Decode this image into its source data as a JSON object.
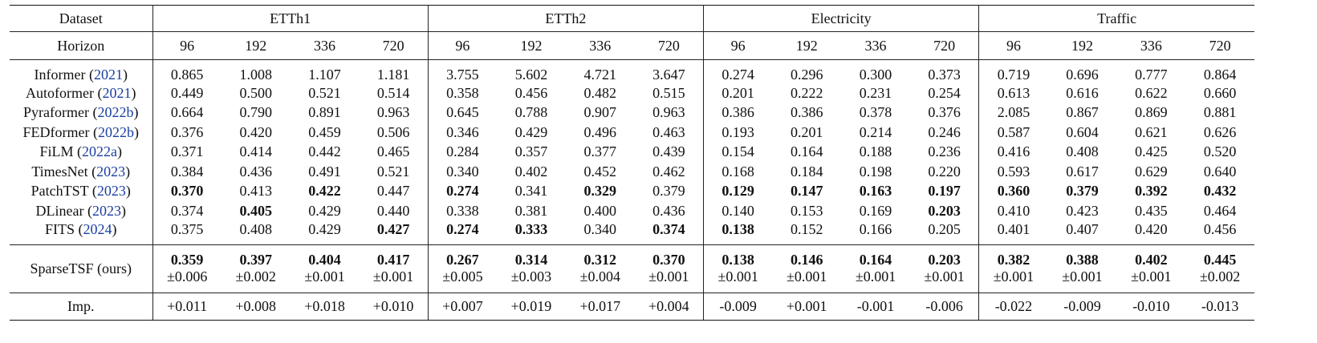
{
  "header": {
    "dataset_label": "Dataset",
    "horizon_label": "Horizon",
    "datasets": [
      "ETTh1",
      "ETTh2",
      "Electricity",
      "Traffic"
    ],
    "horizons": [
      "96",
      "192",
      "336",
      "720"
    ]
  },
  "rows": [
    {
      "model": "Informer",
      "cite": "(2021)",
      "values": [
        "0.865",
        "1.008",
        "1.107",
        "1.181",
        "3.755",
        "5.602",
        "4.721",
        "3.647",
        "0.274",
        "0.296",
        "0.300",
        "0.373",
        "0.719",
        "0.696",
        "0.777",
        "0.864"
      ],
      "bold": []
    },
    {
      "model": "Autoformer",
      "cite": "(2021)",
      "values": [
        "0.449",
        "0.500",
        "0.521",
        "0.514",
        "0.358",
        "0.456",
        "0.482",
        "0.515",
        "0.201",
        "0.222",
        "0.231",
        "0.254",
        "0.613",
        "0.616",
        "0.622",
        "0.660"
      ],
      "bold": []
    },
    {
      "model": "Pyraformer",
      "cite": "(2022b)",
      "values": [
        "0.664",
        "0.790",
        "0.891",
        "0.963",
        "0.645",
        "0.788",
        "0.907",
        "0.963",
        "0.386",
        "0.386",
        "0.378",
        "0.376",
        "2.085",
        "0.867",
        "0.869",
        "0.881"
      ],
      "bold": []
    },
    {
      "model": "FEDformer",
      "cite": "(2022b)",
      "values": [
        "0.376",
        "0.420",
        "0.459",
        "0.506",
        "0.346",
        "0.429",
        "0.496",
        "0.463",
        "0.193",
        "0.201",
        "0.214",
        "0.246",
        "0.587",
        "0.604",
        "0.621",
        "0.626"
      ],
      "bold": []
    },
    {
      "model": "FiLM",
      "cite": "(2022a)",
      "values": [
        "0.371",
        "0.414",
        "0.442",
        "0.465",
        "0.284",
        "0.357",
        "0.377",
        "0.439",
        "0.154",
        "0.164",
        "0.188",
        "0.236",
        "0.416",
        "0.408",
        "0.425",
        "0.520"
      ],
      "bold": []
    },
    {
      "model": "TimesNet",
      "cite": "(2023)",
      "values": [
        "0.384",
        "0.436",
        "0.491",
        "0.521",
        "0.340",
        "0.402",
        "0.452",
        "0.462",
        "0.168",
        "0.184",
        "0.198",
        "0.220",
        "0.593",
        "0.617",
        "0.629",
        "0.640"
      ],
      "bold": []
    },
    {
      "model": "PatchTST",
      "cite": "(2023)",
      "values": [
        "0.370",
        "0.413",
        "0.422",
        "0.447",
        "0.274",
        "0.341",
        "0.329",
        "0.379",
        "0.129",
        "0.147",
        "0.163",
        "0.197",
        "0.360",
        "0.379",
        "0.392",
        "0.432"
      ],
      "bold": [
        0,
        2,
        4,
        6,
        8,
        9,
        10,
        11,
        12,
        13,
        14,
        15
      ]
    },
    {
      "model": "DLinear",
      "cite": "(2023)",
      "values": [
        "0.374",
        "0.405",
        "0.429",
        "0.440",
        "0.338",
        "0.381",
        "0.400",
        "0.436",
        "0.140",
        "0.153",
        "0.169",
        "0.203",
        "0.410",
        "0.423",
        "0.435",
        "0.464"
      ],
      "bold": [
        1,
        11
      ]
    },
    {
      "model": "FITS",
      "cite": "(2024)",
      "values": [
        "0.375",
        "0.408",
        "0.429",
        "0.427",
        "0.274",
        "0.333",
        "0.340",
        "0.374",
        "0.138",
        "0.152",
        "0.166",
        "0.205",
        "0.401",
        "0.407",
        "0.420",
        "0.456"
      ],
      "bold": [
        3,
        4,
        5,
        7,
        8
      ]
    }
  ],
  "ours": {
    "model": "SparseTSF (ours)",
    "values": [
      "0.359",
      "0.397",
      "0.404",
      "0.417",
      "0.267",
      "0.314",
      "0.312",
      "0.370",
      "0.138",
      "0.146",
      "0.164",
      "0.203",
      "0.382",
      "0.388",
      "0.402",
      "0.445"
    ],
    "std": [
      "±0.006",
      "±0.002",
      "±0.001",
      "±0.001",
      "±0.005",
      "±0.003",
      "±0.004",
      "±0.001",
      "±0.001",
      "±0.001",
      "±0.001",
      "±0.001",
      "±0.001",
      "±0.001",
      "±0.001",
      "±0.002"
    ]
  },
  "improvement": {
    "label": "Imp.",
    "values": [
      "+0.011",
      "+0.008",
      "+0.018",
      "+0.010",
      "+0.007",
      "+0.019",
      "+0.017",
      "+0.004",
      "-0.009",
      "+0.001",
      "-0.001",
      "-0.006",
      "-0.022",
      "-0.009",
      "-0.010",
      "-0.013"
    ]
  }
}
